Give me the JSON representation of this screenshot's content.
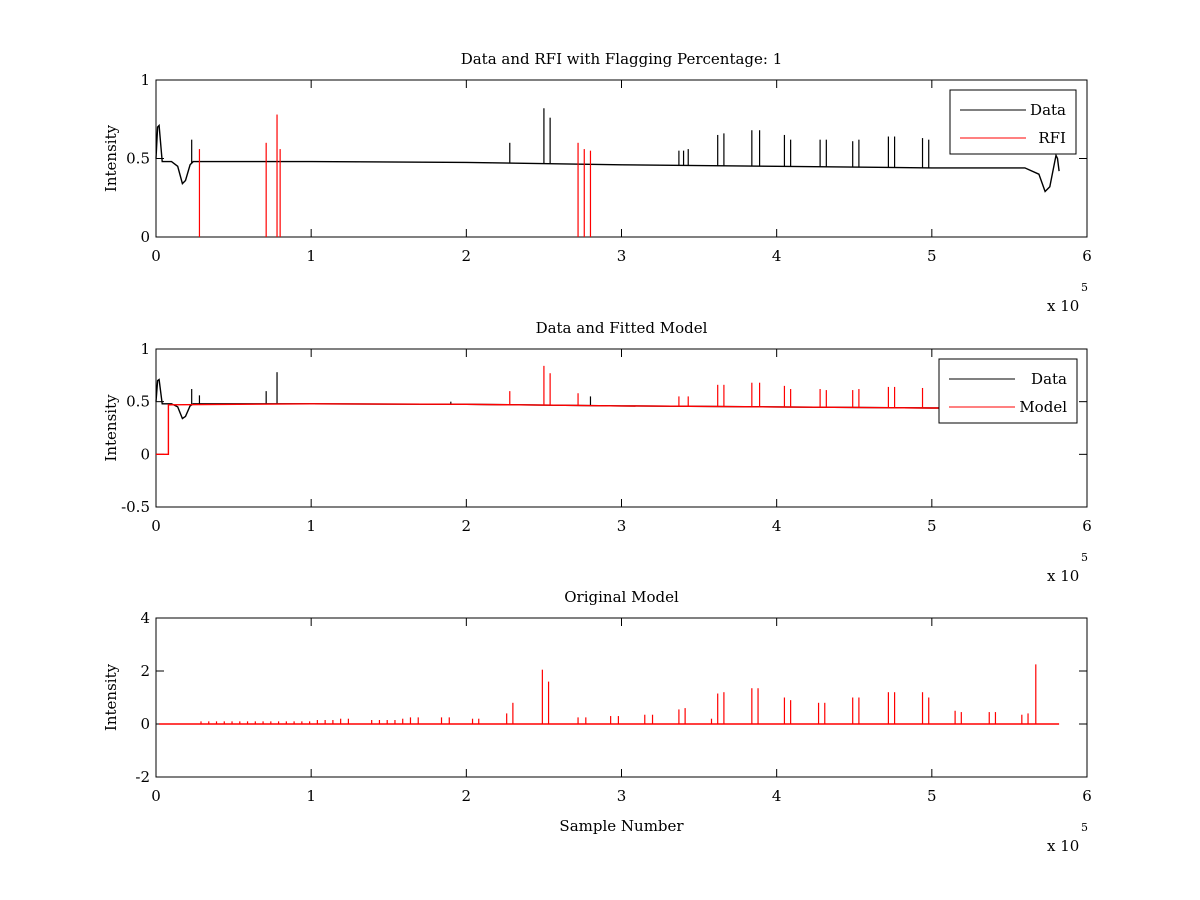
{
  "chart_data": [
    {
      "type": "line",
      "title": "Data and RFI with Flagging Percentage: 1",
      "xlabel": "",
      "ylabel": "Intensity",
      "xlim": [
        0,
        600000
      ],
      "ylim": [
        0,
        1
      ],
      "xticks": [
        0,
        1,
        2,
        3,
        4,
        5,
        6
      ],
      "yticks": [
        0,
        0.5,
        1
      ],
      "x_exponent": {
        "base": "x 10",
        "power": "5"
      },
      "legend": {
        "position": "top-right",
        "entries": [
          {
            "name": "Data",
            "color": "#000000"
          },
          {
            "name": "RFI",
            "color": "#ff0000"
          }
        ]
      },
      "series": [
        {
          "name": "Data",
          "color": "#000000",
          "baseline": [
            [
              0,
              0.5
            ],
            [
              1000,
              0.7
            ],
            [
              2000,
              0.71
            ],
            [
              4000,
              0.48
            ],
            [
              10000,
              0.48
            ],
            [
              14000,
              0.45
            ],
            [
              17000,
              0.34
            ],
            [
              19000,
              0.36
            ],
            [
              22000,
              0.46
            ],
            [
              24000,
              0.48
            ],
            [
              50000,
              0.48
            ],
            [
              100000,
              0.48
            ],
            [
              200000,
              0.475
            ],
            [
              300000,
              0.46
            ],
            [
              400000,
              0.45
            ],
            [
              500000,
              0.44
            ],
            [
              560000,
              0.44
            ],
            [
              569000,
              0.4
            ],
            [
              573000,
              0.29
            ],
            [
              576000,
              0.32
            ],
            [
              580000,
              0.52
            ],
            [
              581000,
              0.5
            ],
            [
              582000,
              0.42
            ]
          ],
          "spikes": [
            [
              23000,
              0.62
            ],
            [
              228000,
              0.6
            ],
            [
              250000,
              0.82
            ],
            [
              254000,
              0.76
            ],
            [
              337000,
              0.55
            ],
            [
              340000,
              0.55
            ],
            [
              343000,
              0.56
            ],
            [
              362000,
              0.65
            ],
            [
              366000,
              0.66
            ],
            [
              384000,
              0.68
            ],
            [
              389000,
              0.68
            ],
            [
              405000,
              0.65
            ],
            [
              409000,
              0.62
            ],
            [
              428000,
              0.62
            ],
            [
              432000,
              0.62
            ],
            [
              449000,
              0.61
            ],
            [
              453000,
              0.62
            ],
            [
              472000,
              0.64
            ],
            [
              476000,
              0.64
            ],
            [
              494000,
              0.63
            ],
            [
              498000,
              0.62
            ]
          ]
        },
        {
          "name": "RFI",
          "color": "#ff0000",
          "spikes": [
            [
              28000,
              0.56
            ],
            [
              71000,
              0.6
            ],
            [
              78000,
              0.78
            ],
            [
              80000,
              0.56
            ],
            [
              272000,
              0.6
            ],
            [
              276000,
              0.56
            ],
            [
              280000,
              0.55
            ]
          ]
        }
      ]
    },
    {
      "type": "line",
      "title": "Data and Fitted Model",
      "xlabel": "",
      "ylabel": "Intensity",
      "xlim": [
        0,
        600000
      ],
      "ylim": [
        -0.5,
        1
      ],
      "xticks": [
        0,
        1,
        2,
        3,
        4,
        5,
        6
      ],
      "yticks": [
        -0.5,
        0,
        0.5,
        1
      ],
      "x_exponent": {
        "base": "x 10",
        "power": "5"
      },
      "legend": {
        "position": "top-right",
        "entries": [
          {
            "name": "Data",
            "color": "#000000"
          },
          {
            "name": "Model",
            "color": "#ff0000"
          }
        ]
      },
      "series": [
        {
          "name": "Data",
          "color": "#000000",
          "baseline": [
            [
              0,
              0.5
            ],
            [
              1000,
              0.7
            ],
            [
              2000,
              0.71
            ],
            [
              4000,
              0.48
            ],
            [
              10000,
              0.48
            ],
            [
              14000,
              0.45
            ],
            [
              17000,
              0.34
            ],
            [
              19000,
              0.36
            ],
            [
              22000,
              0.46
            ],
            [
              24000,
              0.48
            ],
            [
              50000,
              0.48
            ],
            [
              100000,
              0.48
            ],
            [
              200000,
              0.475
            ],
            [
              300000,
              0.46
            ],
            [
              400000,
              0.45
            ],
            [
              500000,
              0.44
            ],
            [
              560000,
              0.44
            ]
          ],
          "spikes": [
            [
              23000,
              0.62
            ],
            [
              28000,
              0.56
            ],
            [
              71000,
              0.6
            ],
            [
              78000,
              0.78
            ],
            [
              190000,
              0.5
            ],
            [
              280000,
              0.55
            ]
          ]
        },
        {
          "name": "Model",
          "color": "#ff0000",
          "baseline": [
            [
              0,
              0
            ],
            [
              8000,
              0
            ],
            [
              8000,
              0.47
            ],
            [
              100000,
              0.48
            ],
            [
              200000,
              0.475
            ],
            [
              300000,
              0.46
            ],
            [
              400000,
              0.45
            ],
            [
              500000,
              0.44
            ],
            [
              505000,
              0.44
            ]
          ],
          "spikes": [
            [
              228000,
              0.6
            ],
            [
              250000,
              0.84
            ],
            [
              254000,
              0.77
            ],
            [
              272000,
              0.58
            ],
            [
              337000,
              0.55
            ],
            [
              343000,
              0.55
            ],
            [
              362000,
              0.66
            ],
            [
              366000,
              0.66
            ],
            [
              384000,
              0.68
            ],
            [
              389000,
              0.68
            ],
            [
              405000,
              0.65
            ],
            [
              409000,
              0.62
            ],
            [
              428000,
              0.62
            ],
            [
              432000,
              0.61
            ],
            [
              449000,
              0.61
            ],
            [
              453000,
              0.62
            ],
            [
              472000,
              0.64
            ],
            [
              476000,
              0.64
            ],
            [
              494000,
              0.63
            ]
          ]
        }
      ]
    },
    {
      "type": "line",
      "title": "Original Model",
      "xlabel": "Sample Number",
      "ylabel": "Intensity",
      "xlim": [
        0,
        600000
      ],
      "ylim": [
        -2,
        4
      ],
      "xticks": [
        0,
        1,
        2,
        3,
        4,
        5,
        6
      ],
      "yticks": [
        -2,
        0,
        2,
        4
      ],
      "x_exponent": {
        "base": "x 10",
        "power": "5"
      },
      "series": [
        {
          "name": "",
          "color": "#ff0000",
          "baseline": [
            [
              2000,
              0
            ],
            [
              582000,
              0
            ]
          ],
          "spikes": [
            [
              29000,
              0.1
            ],
            [
              34000,
              0.1
            ],
            [
              39000,
              0.1
            ],
            [
              44000,
              0.1
            ],
            [
              49000,
              0.1
            ],
            [
              54000,
              0.1
            ],
            [
              59000,
              0.1
            ],
            [
              64000,
              0.1
            ],
            [
              69000,
              0.1
            ],
            [
              74000,
              0.1
            ],
            [
              79000,
              0.1
            ],
            [
              84000,
              0.1
            ],
            [
              89000,
              0.1
            ],
            [
              94000,
              0.1
            ],
            [
              99000,
              0.1
            ],
            [
              104000,
              0.15
            ],
            [
              109000,
              0.15
            ],
            [
              114000,
              0.15
            ],
            [
              119000,
              0.2
            ],
            [
              124000,
              0.2
            ],
            [
              139000,
              0.15
            ],
            [
              144000,
              0.15
            ],
            [
              149000,
              0.15
            ],
            [
              154000,
              0.15
            ],
            [
              159000,
              0.2
            ],
            [
              164000,
              0.25
            ],
            [
              169000,
              0.25
            ],
            [
              184000,
              0.25
            ],
            [
              189000,
              0.25
            ],
            [
              204000,
              0.2
            ],
            [
              208000,
              0.2
            ],
            [
              226000,
              0.4
            ],
            [
              230000,
              0.8
            ],
            [
              249000,
              2.05
            ],
            [
              253000,
              1.6
            ],
            [
              272000,
              0.25
            ],
            [
              277000,
              0.25
            ],
            [
              293000,
              0.3
            ],
            [
              298000,
              0.3
            ],
            [
              315000,
              0.35
            ],
            [
              320000,
              0.35
            ],
            [
              337000,
              0.55
            ],
            [
              341000,
              0.6
            ],
            [
              358000,
              0.2
            ],
            [
              362000,
              1.15
            ],
            [
              366000,
              1.2
            ],
            [
              384000,
              1.35
            ],
            [
              388000,
              1.35
            ],
            [
              405000,
              1.0
            ],
            [
              409000,
              0.9
            ],
            [
              427000,
              0.8
            ],
            [
              431000,
              0.8
            ],
            [
              449000,
              1.0
            ],
            [
              453000,
              1.0
            ],
            [
              472000,
              1.2
            ],
            [
              476000,
              1.2
            ],
            [
              494000,
              1.2
            ],
            [
              498000,
              1.0
            ],
            [
              515000,
              0.5
            ],
            [
              519000,
              0.45
            ],
            [
              537000,
              0.45
            ],
            [
              541000,
              0.45
            ],
            [
              558000,
              0.35
            ],
            [
              562000,
              0.4
            ],
            [
              567000,
              2.25
            ]
          ]
        }
      ]
    }
  ]
}
